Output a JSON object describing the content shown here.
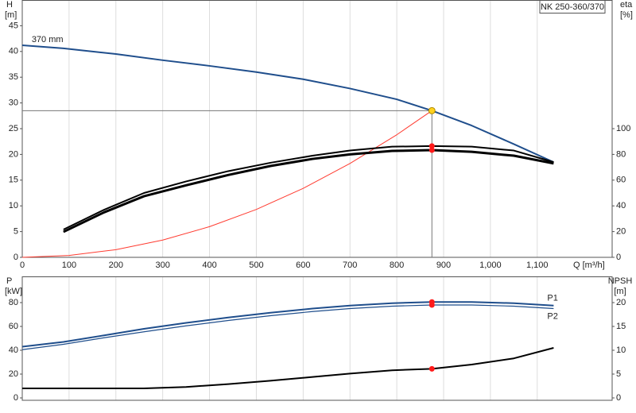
{
  "chart_data": [
    {
      "type": "line",
      "title": "NK 250-360/370",
      "xlabel": "Q [m³/h]",
      "ylabel": "H",
      "yunit": "[m]",
      "y2label": "eta",
      "y2unit": "[%]",
      "xlim": [
        0,
        1260
      ],
      "ylim": [
        0,
        50
      ],
      "y2lim": [
        0,
        200
      ],
      "xticks": [
        0,
        100,
        200,
        300,
        400,
        500,
        600,
        700,
        800,
        900,
        {
          "value": 1000,
          "label": "1,000"
        },
        {
          "value": 1100,
          "label": "1,100"
        }
      ],
      "yticks": [
        0,
        5,
        10,
        15,
        20,
        25,
        30,
        35,
        40,
        45
      ],
      "y2ticks": [
        0,
        20,
        40,
        60,
        80,
        100
      ],
      "grid": true,
      "series_label_pos": "start",
      "operating_point": {
        "x": 875,
        "y": 28.5
      },
      "series": [
        {
          "name": "370 mm",
          "color": "#1f4e8c",
          "linewidth": 2,
          "x": [
            0,
            88,
            200,
            300,
            400,
            500,
            600,
            700,
            800,
            875,
            960,
            1050,
            1135
          ],
          "values": [
            41.2,
            40.6,
            39.5,
            38.3,
            37.2,
            36.0,
            34.6,
            32.8,
            30.7,
            28.5,
            25.6,
            22.0,
            18.5
          ]
        },
        {
          "color": "#ff3b30",
          "linewidth": 1,
          "x": [
            0,
            100,
            200,
            300,
            400,
            500,
            600,
            700,
            800,
            875
          ],
          "values": [
            0,
            0.37,
            1.49,
            3.35,
            5.96,
            9.31,
            13.4,
            18.24,
            23.82,
            28.5
          ]
        },
        {
          "color": "#000000",
          "linewidth": 2,
          "axis": "y2",
          "marker": true,
          "x": [
            88,
            175,
            260,
            350,
            440,
            530,
            620,
            700,
            790,
            875,
            960,
            1050,
            1135
          ],
          "values": [
            21.6,
            37,
            50,
            59,
            67,
            73.5,
            79,
            83,
            86,
            86.5,
            86,
            83,
            74
          ]
        },
        {
          "color": "#000000",
          "linewidth": 3,
          "axis": "y2",
          "marker": true,
          "x": [
            88,
            175,
            260,
            350,
            440,
            530,
            620,
            700,
            790,
            875,
            960,
            1050,
            1135
          ],
          "values": [
            19.8,
            35,
            47.5,
            56,
            64,
            71,
            76.5,
            80,
            82.7,
            83.3,
            82,
            79,
            73
          ]
        }
      ]
    },
    {
      "type": "line",
      "ylabel": "P",
      "yunit": "[kW]",
      "y2label": "NPSH",
      "y2unit": "[m]",
      "xlim": [
        0,
        1260
      ],
      "ylim": [
        -2,
        102
      ],
      "y2lim": [
        -0.5,
        25.5
      ],
      "yticks": [
        0,
        20,
        40,
        60,
        80
      ],
      "y2ticks": [
        0,
        5,
        10,
        15,
        20
      ],
      "grid": true,
      "series_label_pos": "end",
      "operating_point": {
        "x": 875
      },
      "series": [
        {
          "name": "P1",
          "color": "#1f4e8c",
          "linewidth": 2,
          "marker": true,
          "x": [
            0,
            88,
            175,
            260,
            350,
            440,
            530,
            620,
            700,
            790,
            875,
            960,
            1050,
            1135
          ],
          "values": [
            43,
            47,
            52.5,
            58,
            63,
            67.5,
            71.5,
            75,
            77.5,
            79.5,
            80.5,
            80.5,
            79.5,
            77.5
          ]
        },
        {
          "name": "P2",
          "color": "#1f4e8c",
          "linewidth": 1.2,
          "marker": true,
          "x": [
            0,
            88,
            175,
            260,
            350,
            440,
            530,
            620,
            700,
            790,
            875,
            960,
            1050,
            1135
          ],
          "values": [
            40.5,
            45,
            50.5,
            55.5,
            60.5,
            65,
            69,
            72.5,
            75,
            77,
            78,
            78,
            77,
            75
          ]
        },
        {
          "color": "#000000",
          "linewidth": 2,
          "axis": "y2",
          "marker": true,
          "x": [
            0,
            88,
            260,
            350,
            440,
            530,
            620,
            700,
            790,
            875,
            960,
            1050,
            1135
          ],
          "values": [
            2,
            2,
            2,
            2.3,
            2.9,
            3.6,
            4.4,
            5.1,
            5.8,
            6.1,
            7,
            8.3,
            10.5
          ]
        }
      ]
    }
  ]
}
